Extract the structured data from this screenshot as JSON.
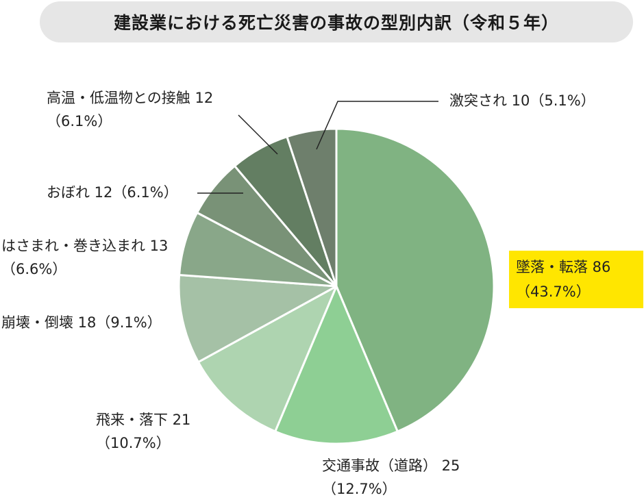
{
  "chart_data": {
    "type": "pie",
    "title": "建設業における死亡災害の事故の型別内訳（令和５年）",
    "slices": [
      {
        "label": "墜落・転落",
        "value": 86,
        "percent": "43.7%",
        "color": "#80b382"
      },
      {
        "label": "交通事故（道路）",
        "value": 25,
        "percent": "12.7%",
        "color": "#8ecf94"
      },
      {
        "label": "飛来・落下",
        "value": 21,
        "percent": "10.7%",
        "color": "#aed4b0"
      },
      {
        "label": "崩壊・倒壊",
        "value": 18,
        "percent": "9.1%",
        "color": "#a5c1a6"
      },
      {
        "label": "はさまれ・巻き込まれ",
        "value": 13,
        "percent": "6.6%",
        "color": "#89a789"
      },
      {
        "label": "おぼれ",
        "value": 12,
        "percent": "6.1%",
        "color": "#799277"
      },
      {
        "label": "高温・低温物との接触",
        "value": 12,
        "percent": "6.1%",
        "color": "#637e62"
      },
      {
        "label": "激突され",
        "value": 10,
        "percent": "5.1%",
        "color": "#6e7f6c"
      }
    ],
    "start_angle_deg": 0,
    "direction": "clockwise",
    "highlight_color": "#ffe600"
  },
  "labels": {
    "fall": {
      "line1": "墜落・転落 86",
      "line2": "（43.7%）"
    },
    "traffic": {
      "line1": "交通事故（道路） 25",
      "line2": "（12.7%）"
    },
    "flying": {
      "line1": "飛来・落下 21",
      "line2": "（10.7%）"
    },
    "collapse": {
      "line1": "崩壊・倒壊 18（9.1%）"
    },
    "caught": {
      "line1": "はさまれ・巻き込まれ 13",
      "line2": "（6.6%）"
    },
    "drown": {
      "line1": "おぼれ 12（6.1%）"
    },
    "temp": {
      "line1": "高温・低温物との接触 12",
      "line2": "（6.1%）"
    },
    "struck": {
      "line1": "激突され 10（5.1%）"
    }
  }
}
